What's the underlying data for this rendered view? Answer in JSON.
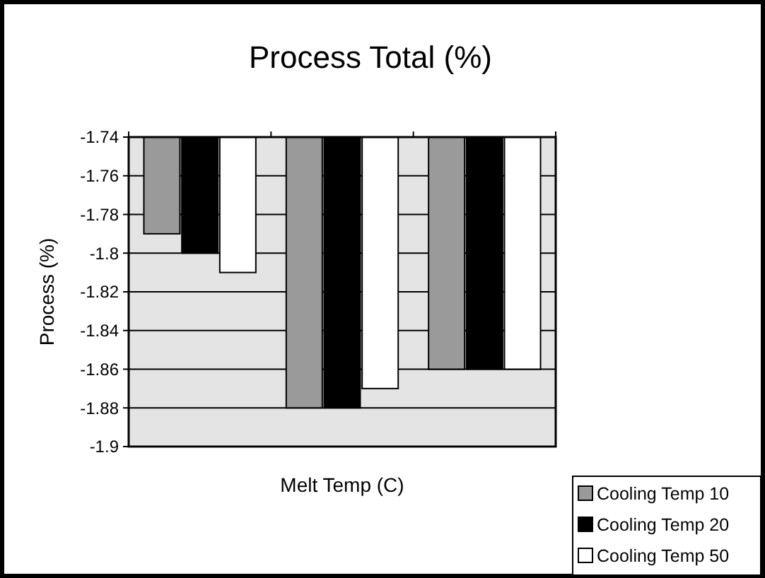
{
  "chart_data": {
    "type": "bar",
    "title": "Process Total (%)",
    "xlabel": "Melt Temp (C)",
    "ylabel": "Process (%)",
    "categories": [
      null,
      null,
      null
    ],
    "series": [
      {
        "name": "Cooling Temp 10",
        "color": "#9a9a9a",
        "values": [
          -1.79,
          -1.88,
          -1.86
        ]
      },
      {
        "name": "Cooling Temp 20",
        "color": "#000000",
        "values": [
          -1.8,
          -1.88,
          -1.86
        ]
      },
      {
        "name": "Cooling Temp 50",
        "color": "#ffffff",
        "values": [
          -1.81,
          -1.87,
          -1.86
        ]
      }
    ],
    "ylim": [
      -1.9,
      -1.74
    ],
    "yticks": [
      -1.9,
      -1.88,
      -1.86,
      -1.84,
      -1.82,
      -1.8,
      -1.78,
      -1.76,
      -1.74
    ],
    "grid": "y",
    "legend": "bottom right"
  }
}
